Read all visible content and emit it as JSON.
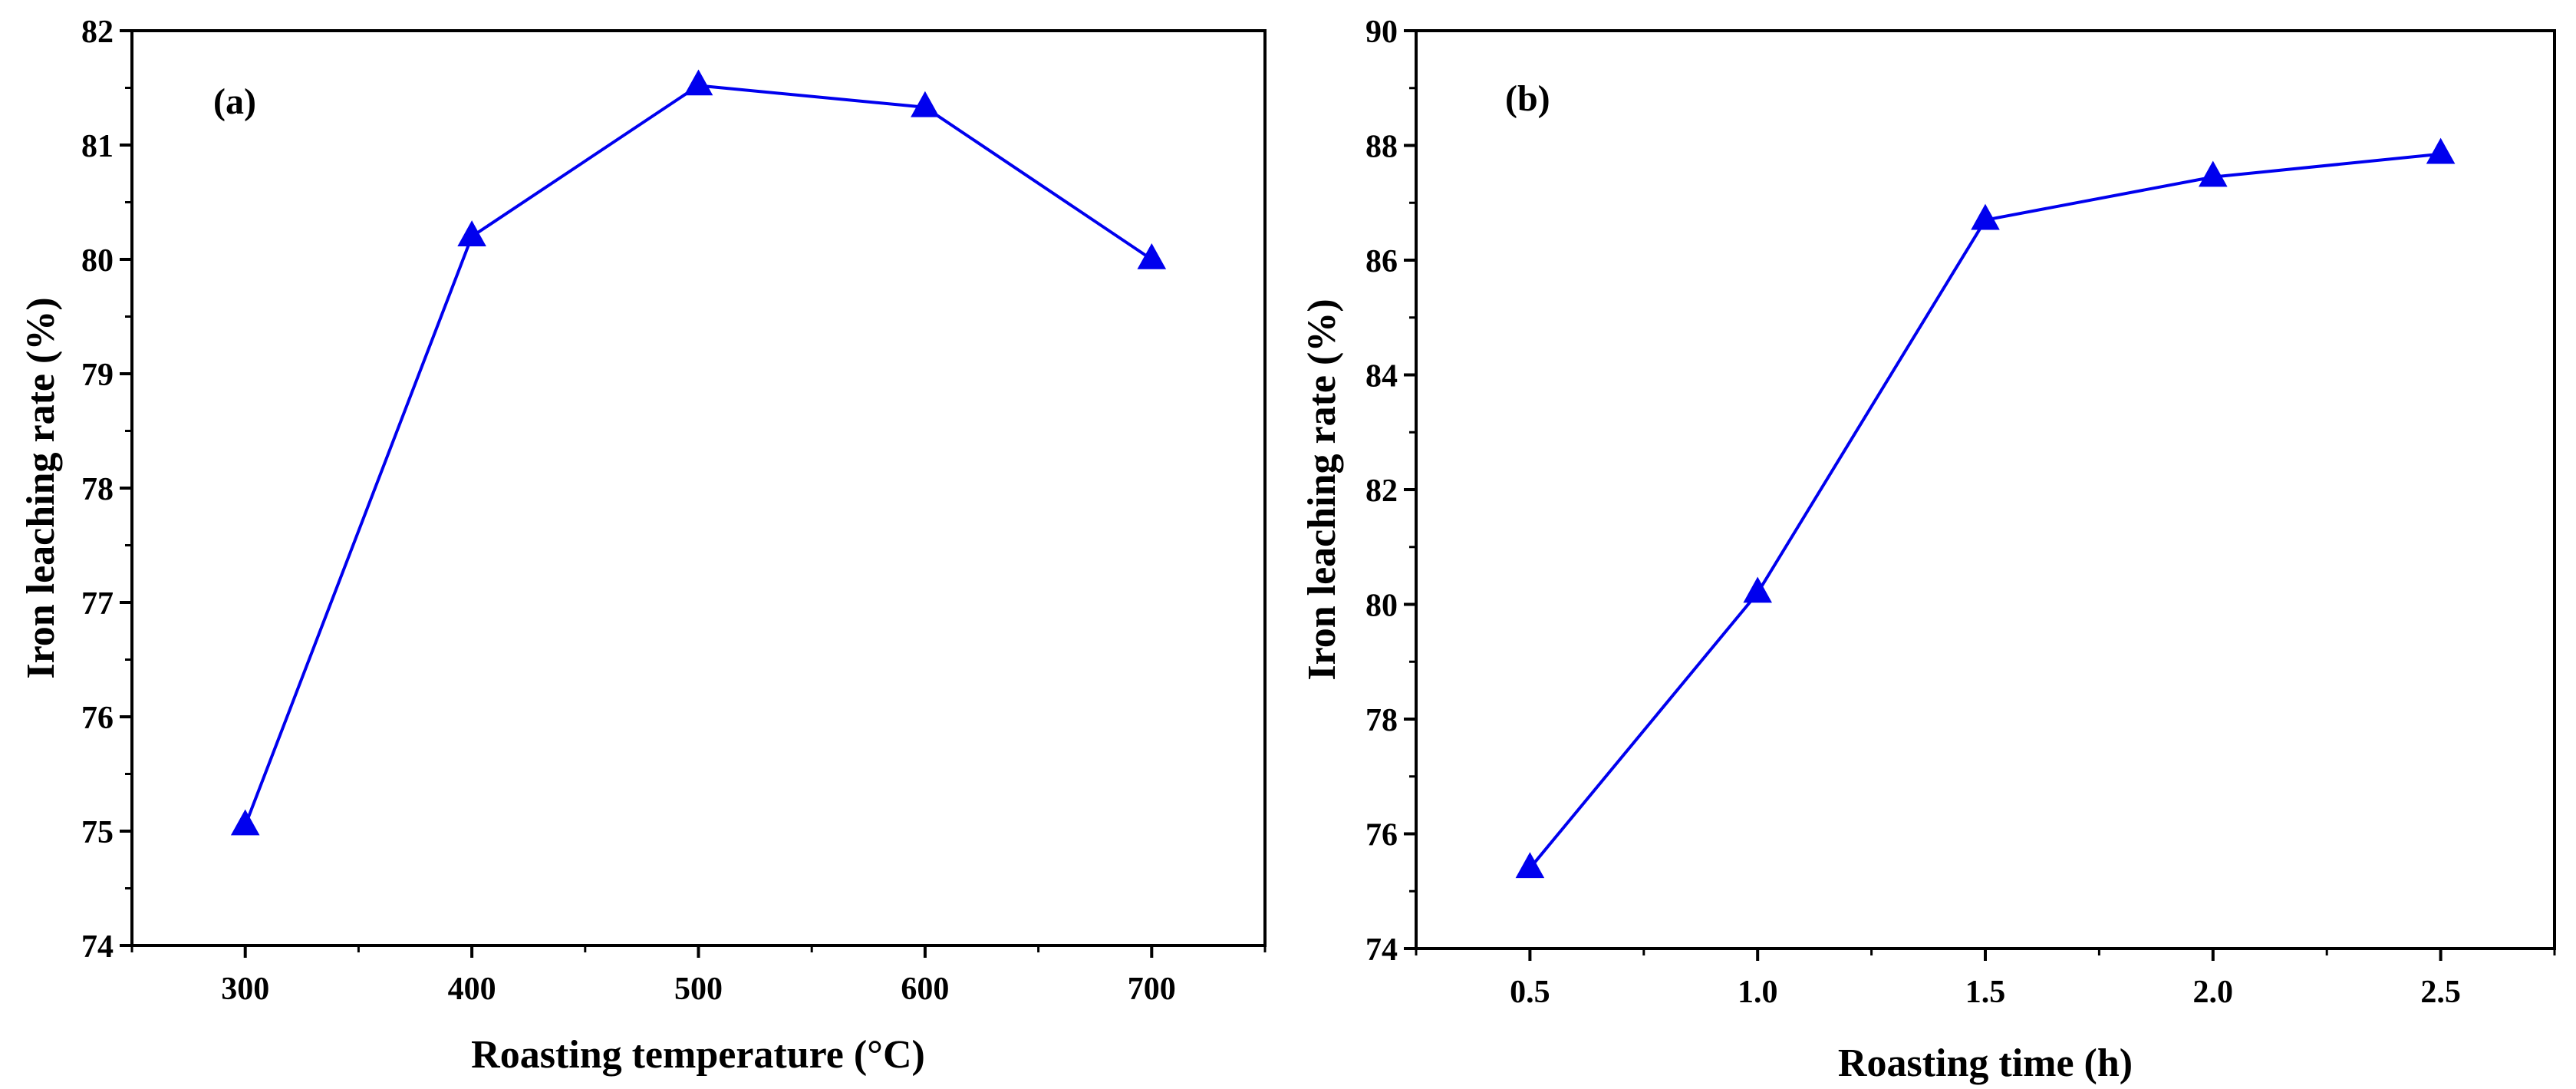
{
  "figure": {
    "colors": {
      "series": "#0000ee",
      "axis": "#000000"
    }
  },
  "chart_data": [
    {
      "type": "line",
      "panel_label": "(a)",
      "xlabel": "Roasting temperature (°C)",
      "ylabel": "Iron leaching rate (%)",
      "xlim": [
        250,
        750
      ],
      "ylim": [
        74,
        82
      ],
      "x_ticks": [
        300,
        400,
        500,
        600,
        700
      ],
      "x_tick_labels": [
        "300",
        "400",
        "500",
        "600",
        "700"
      ],
      "y_ticks": [
        74,
        75,
        76,
        77,
        78,
        79,
        80,
        81,
        82
      ],
      "y_tick_labels": [
        "74",
        "75",
        "76",
        "77",
        "78",
        "79",
        "80",
        "81",
        "82"
      ],
      "series": [
        {
          "name": "Iron leaching rate",
          "marker": "triangle",
          "color": "#0000ee",
          "x": [
            300,
            400,
            500,
            600,
            700
          ],
          "y": [
            75.05,
            80.2,
            81.52,
            81.33,
            80.0
          ]
        }
      ]
    },
    {
      "type": "line",
      "panel_label": "(b)",
      "xlabel": "Roasting time (h)",
      "ylabel": "Iron leaching rate (%)",
      "xlim": [
        0.25,
        2.75
      ],
      "ylim": [
        74,
        90
      ],
      "x_ticks": [
        0.5,
        1.0,
        1.5,
        2.0,
        2.5
      ],
      "x_tick_labels": [
        "0.5",
        "1.0",
        "1.5",
        "2.0",
        "2.5"
      ],
      "y_ticks": [
        74,
        76,
        78,
        80,
        82,
        84,
        86,
        88,
        90
      ],
      "y_tick_labels": [
        "74",
        "76",
        "78",
        "80",
        "82",
        "84",
        "86",
        "88",
        "90"
      ],
      "series": [
        {
          "name": "Iron leaching rate",
          "marker": "triangle",
          "color": "#0000ee",
          "x": [
            0.5,
            1.0,
            1.5,
            2.0,
            2.5
          ],
          "y": [
            75.4,
            80.2,
            86.7,
            87.45,
            87.85
          ]
        }
      ]
    }
  ]
}
